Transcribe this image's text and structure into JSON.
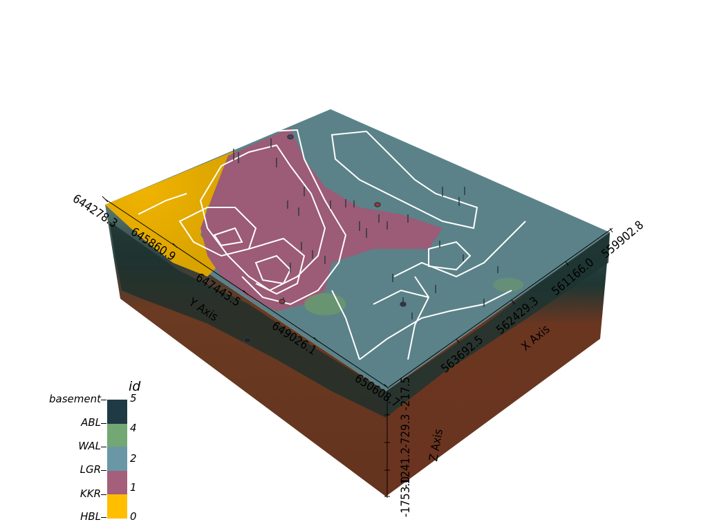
{
  "axes": {
    "x_title": "X Axis",
    "y_title": "Y Axis",
    "z_title": "Z Axis",
    "y_ticks": [
      "644278.3",
      "645860.9",
      "647443.5",
      "649026.1",
      "650608.7"
    ],
    "x_ticks": [
      "563692.5",
      "562429.3",
      "561166.0",
      "559902.8"
    ],
    "z_ticks": [
      "-1753.0",
      "-1241.2",
      "-729.3",
      "-217.5"
    ]
  },
  "legend": {
    "title": "id",
    "items": [
      {
        "label": "basement",
        "value": "5",
        "color": "#1f3a44"
      },
      {
        "label": "ABL",
        "value": "4",
        "color": "#73a773"
      },
      {
        "label": "WAL",
        "value": "",
        "color": "#6a97a5"
      },
      {
        "label": "LGR",
        "value": "2",
        "color": "#6a97a5"
      },
      {
        "label": "KKR",
        "value": "1",
        "color": "#a45f7a"
      },
      {
        "label": "HBL",
        "value": "0",
        "color": "#ffbf00"
      }
    ]
  },
  "colors": {
    "top_surface": "#5b8289",
    "kkr": "#9c5b76",
    "hbl": "#e0a800",
    "wal": "#6d9a6a",
    "basement_face": "#6b3620",
    "contours": "#ffffff"
  }
}
